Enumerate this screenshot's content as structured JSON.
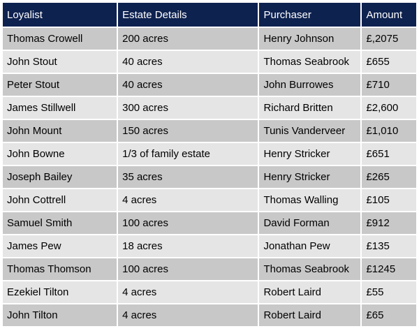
{
  "table": {
    "headers": [
      "Loyalist",
      "Estate Details",
      "Purchaser",
      "Amount"
    ],
    "rows": [
      [
        "Thomas Crowell",
        "200 acres",
        "Henry Johnson",
        "£,2075"
      ],
      [
        "John Stout",
        "40 acres",
        "Thomas Seabrook",
        "£655"
      ],
      [
        "Peter Stout",
        "40 acres",
        "John Burrowes",
        "£710"
      ],
      [
        "James Stillwell",
        "300 acres",
        "Richard Britten",
        "£2,600"
      ],
      [
        "John Mount",
        "150 acres",
        "Tunis Vanderveer",
        "£1,010"
      ],
      [
        "John Bowne",
        "1/3 of family estate",
        "Henry Stricker",
        "£651"
      ],
      [
        "Joseph Bailey",
        "35 acres",
        "Henry Stricker",
        "£265"
      ],
      [
        "John Cottrell",
        "4 acres",
        "Thomas Walling",
        "£105"
      ],
      [
        "Samuel Smith",
        "100 acres",
        "David Forman",
        "£912"
      ],
      [
        "James Pew",
        "18 acres",
        "Jonathan Pew",
        "£135"
      ],
      [
        "Thomas Thomson",
        "100 acres",
        "Thomas Seabrook",
        "£1245"
      ],
      [
        "Ezekiel Tilton",
        "4 acres",
        "Robert Laird",
        "£55"
      ],
      [
        "John Tilton",
        "4 acres",
        "Robert Laird",
        "£65"
      ]
    ]
  },
  "colors": {
    "header_bg": "#0e2250",
    "header_text": "#ffffff",
    "row_dark": "#c8c8c8",
    "row_light": "#e5e5e5"
  }
}
